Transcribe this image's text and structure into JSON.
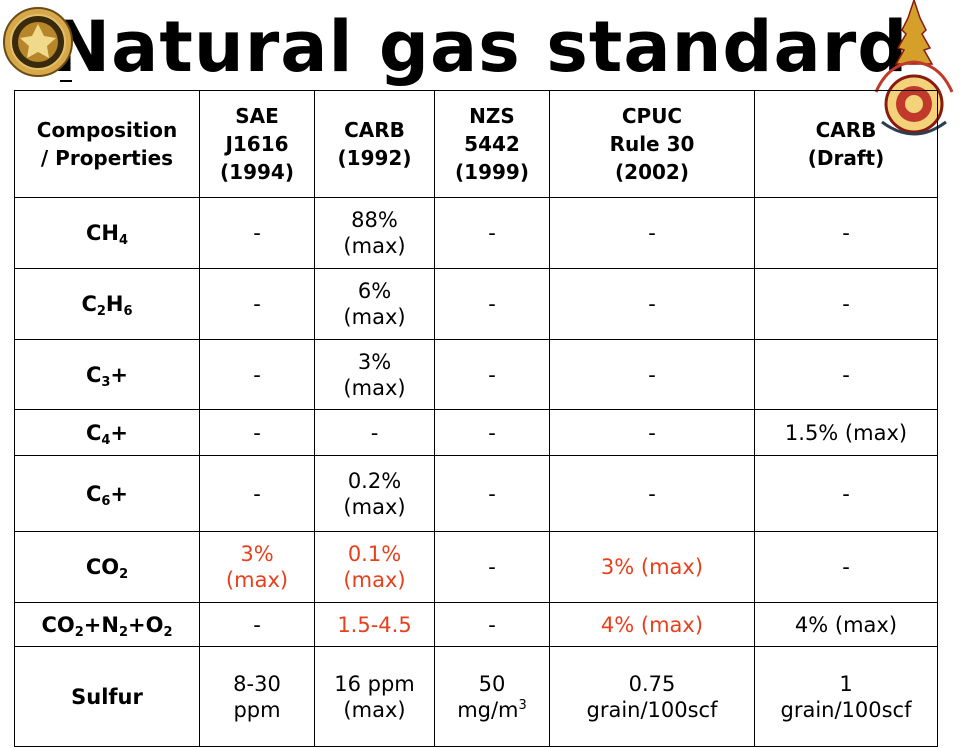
{
  "title": "Natural gas standard",
  "colors": {
    "highlight": "#e8401c"
  },
  "logos": {
    "left": "university-seal-icon",
    "right": "rmut-emblem-icon"
  },
  "table": {
    "headers": [
      "Composition\n/ Properties",
      "SAE\nJ1616\n(1994)",
      "CARB\n(1992)",
      "NZS\n5442\n(1999)",
      "CPUC\nRule 30\n(2002)",
      "CARB\n(Draft)"
    ],
    "rows": [
      {
        "label": {
          "base": "CH",
          "sub": "4",
          "tail": ""
        },
        "cells": [
          "-",
          "88%\n(max)",
          "-",
          "-",
          "-"
        ],
        "red": [
          false,
          false,
          false,
          false,
          false
        ]
      },
      {
        "label": {
          "base": "C",
          "sub": "2",
          "mid": "H",
          "sub2": "6",
          "tail": ""
        },
        "cells": [
          "-",
          "6%\n(max)",
          "-",
          "-",
          "-"
        ],
        "red": [
          false,
          false,
          false,
          false,
          false
        ]
      },
      {
        "label": {
          "base": "C",
          "sub": "3",
          "tail": "+"
        },
        "cells": [
          "-",
          "3%\n(max)",
          "-",
          "-",
          "-"
        ],
        "red": [
          false,
          false,
          false,
          false,
          false
        ]
      },
      {
        "label": {
          "base": "C",
          "sub": "4",
          "tail": "+"
        },
        "cells": [
          "-",
          "-",
          "-",
          "-",
          "1.5% (max)"
        ],
        "red": [
          false,
          false,
          false,
          false,
          false
        ]
      },
      {
        "label": {
          "base": "C",
          "sub": "6",
          "tail": "+"
        },
        "cells": [
          "-",
          "0.2%\n(max)",
          "-",
          "-",
          "-"
        ],
        "red": [
          false,
          false,
          false,
          false,
          false
        ]
      },
      {
        "label": {
          "base": "CO",
          "sub": "2",
          "tail": ""
        },
        "cells": [
          "3%\n(max)",
          "0.1%\n(max)",
          "-",
          "3% (max)",
          "-"
        ],
        "red": [
          true,
          true,
          false,
          true,
          false
        ]
      },
      {
        "label": {
          "text": "CO2+N2+O2"
        },
        "cells": [
          "-",
          "1.5-4.5",
          "-",
          "4% (max)",
          "4% (max)"
        ],
        "red": [
          false,
          true,
          false,
          true,
          false
        ]
      },
      {
        "label": {
          "base": "Sulfur",
          "sub": "",
          "tail": ""
        },
        "cells": [
          "8-30\nppm",
          "16 ppm\n(max)",
          "50\nmg/m3",
          "0.75\ngrain/100scf",
          "1\ngrain/100scf"
        ],
        "red": [
          false,
          false,
          false,
          false,
          false
        ]
      }
    ]
  }
}
